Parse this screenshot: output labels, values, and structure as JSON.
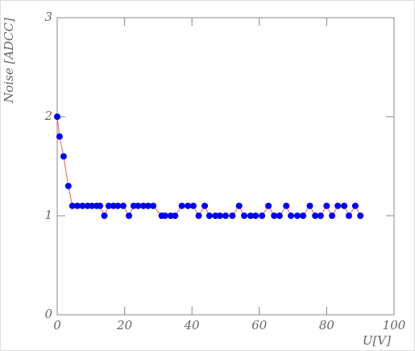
{
  "chart_data": {
    "type": "line",
    "x_label": "U[V]",
    "y_label": "Noise [ADCC]",
    "xlim": [
      0,
      100
    ],
    "xticks": [
      0,
      20,
      40,
      60,
      80,
      100
    ],
    "ylim": [
      0,
      3
    ],
    "yticks": [
      0,
      1,
      2,
      3
    ],
    "series": [
      {
        "color": "#0000ee",
        "line_color": "#e06060",
        "x": [
          0,
          0.7,
          1.9,
          3.3,
          4.5,
          6,
          7.5,
          9,
          10.3,
          11.7,
          12.7,
          14,
          15.3,
          16.7,
          18,
          19.6,
          21.3,
          22.7,
          24,
          25.6,
          27,
          28.5,
          31,
          32,
          33.7,
          35,
          37,
          38.8,
          40.4,
          42,
          43.8,
          45.2,
          47,
          48.3,
          50,
          52,
          54,
          55.5,
          57.4,
          58.9,
          60.8,
          62.7,
          64.4,
          66,
          68,
          69.4,
          71.3,
          73,
          75,
          76.6,
          78.2,
          80,
          81.6,
          83.3,
          85.2,
          86.6,
          88.5,
          90
        ],
        "values": [
          2.0,
          1.8,
          1.6,
          1.3,
          1.1,
          1.1,
          1.1,
          1.1,
          1.1,
          1.1,
          1.1,
          1.0,
          1.1,
          1.1,
          1.1,
          1.1,
          1.0,
          1.1,
          1.1,
          1.1,
          1.1,
          1.1,
          1.0,
          1.0,
          1.0,
          1.0,
          1.1,
          1.1,
          1.1,
          1.0,
          1.1,
          1.0,
          1.0,
          1.0,
          1.0,
          1.0,
          1.1,
          1.0,
          1.0,
          1.0,
          1.0,
          1.1,
          1.0,
          1.0,
          1.1,
          1.0,
          1.0,
          1.0,
          1.1,
          1.0,
          1.0,
          1.1,
          1.0,
          1.1,
          1.1,
          1.0,
          1.1,
          1.0
        ]
      }
    ]
  }
}
